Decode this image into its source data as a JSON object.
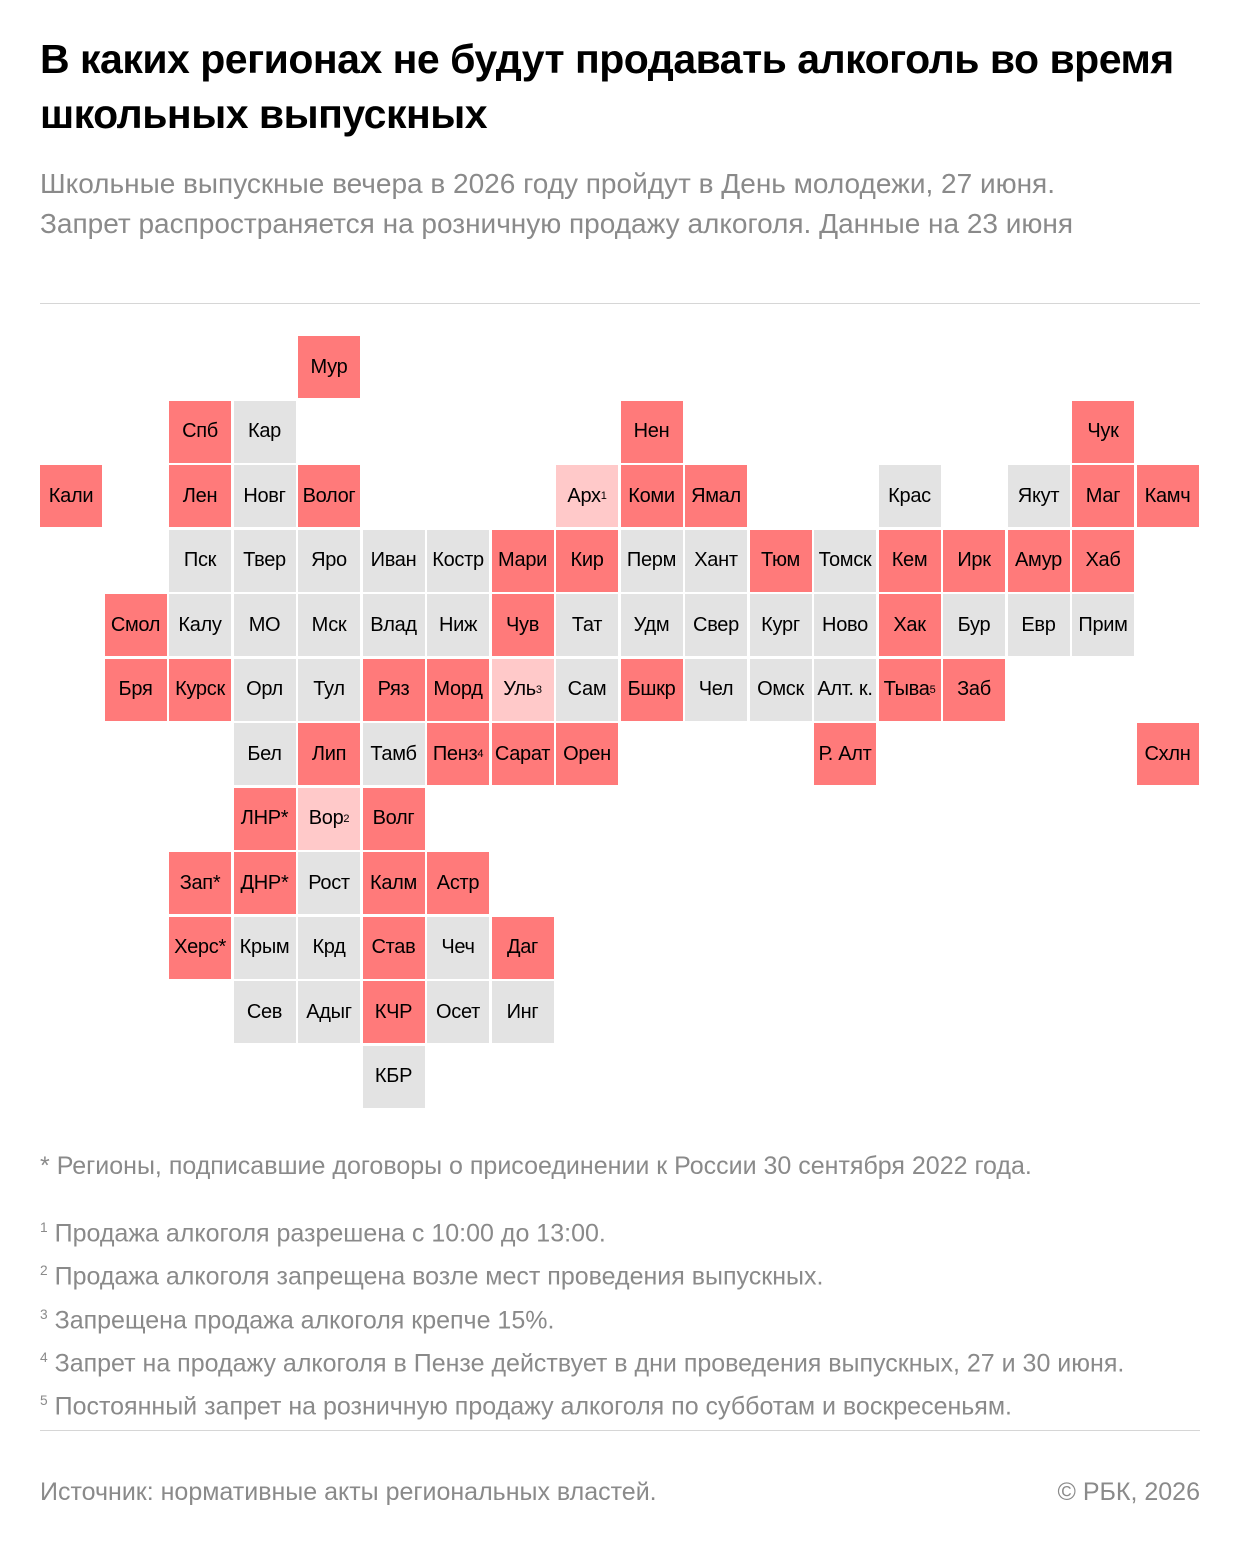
{
  "header": {
    "title": "В каких регионах не будут продавать алкоголь во время школьных выпускных",
    "subtitle": "Школьные выпускные вечера в 2026 году пройдут в День молодежи, 27 июня. Запрет распространяется на розничную продажу алкоголя. Данные на 23 июня"
  },
  "map": {
    "colors": {
      "ban": "#ff7a7a",
      "partial": "#ffc9c9",
      "none": "#e3e3e3"
    },
    "rows": [
      [
        null,
        null,
        null,
        null,
        {
          "label": "Мур",
          "ban": true
        },
        null,
        null,
        null,
        null,
        null,
        null,
        null,
        null,
        null,
        null,
        null,
        null,
        null
      ],
      [
        null,
        null,
        {
          "label": "Спб",
          "ban": true
        },
        {
          "label": "Кар"
        },
        null,
        null,
        null,
        null,
        null,
        {
          "label": "Нен",
          "ban": true
        },
        null,
        null,
        null,
        null,
        null,
        null,
        {
          "label": "Чук",
          "ban": true
        },
        null
      ],
      [
        {
          "label": "Кали",
          "ban": true
        },
        null,
        {
          "label": "Лен",
          "ban": true
        },
        {
          "label": "Новг"
        },
        {
          "label": "Волог",
          "ban": true
        },
        null,
        null,
        null,
        {
          "label": "Арх",
          "note": "1",
          "partial": true
        },
        {
          "label": "Коми",
          "ban": true
        },
        {
          "label": "Ямал",
          "ban": true
        },
        null,
        null,
        {
          "label": "Крас"
        },
        null,
        {
          "label": "Якут"
        },
        {
          "label": "Маг",
          "ban": true
        },
        {
          "label": "Камч",
          "ban": true
        }
      ],
      [
        null,
        null,
        {
          "label": "Пск"
        },
        {
          "label": "Твер"
        },
        {
          "label": "Яро"
        },
        {
          "label": "Иван"
        },
        {
          "label": "Костр"
        },
        {
          "label": "Мари",
          "ban": true
        },
        {
          "label": "Кир",
          "ban": true
        },
        {
          "label": "Перм"
        },
        {
          "label": "Хант"
        },
        {
          "label": "Тюм",
          "ban": true
        },
        {
          "label": "Томск"
        },
        {
          "label": "Кем",
          "ban": true
        },
        {
          "label": "Ирк",
          "ban": true
        },
        {
          "label": "Амур",
          "ban": true
        },
        {
          "label": "Хаб",
          "ban": true
        },
        null
      ],
      [
        null,
        {
          "label": "Смол",
          "ban": true
        },
        {
          "label": "Калу"
        },
        {
          "label": "МО"
        },
        {
          "label": "Мск"
        },
        {
          "label": "Влад"
        },
        {
          "label": "Ниж"
        },
        {
          "label": "Чув",
          "ban": true
        },
        {
          "label": "Тат"
        },
        {
          "label": "Удм"
        },
        {
          "label": "Свер"
        },
        {
          "label": "Кург"
        },
        {
          "label": "Ново"
        },
        {
          "label": "Хак",
          "ban": true
        },
        {
          "label": "Бур"
        },
        {
          "label": "Евр"
        },
        {
          "label": "Прим"
        },
        null
      ],
      [
        null,
        {
          "label": "Бря",
          "ban": true
        },
        {
          "label": "Курск",
          "ban": true
        },
        {
          "label": "Орл"
        },
        {
          "label": "Тул"
        },
        {
          "label": "Ряз",
          "ban": true
        },
        {
          "label": "Морд",
          "ban": true
        },
        {
          "label": "Уль",
          "note": "3",
          "partial": true
        },
        {
          "label": "Сам"
        },
        {
          "label": "Бшкр",
          "ban": true
        },
        {
          "label": "Чел"
        },
        {
          "label": "Омск"
        },
        {
          "label": "Алт. к."
        },
        {
          "label": "Тыва",
          "note": "5",
          "ban": true
        },
        {
          "label": "Заб",
          "ban": true
        },
        null,
        null,
        null
      ],
      [
        null,
        null,
        null,
        {
          "label": "Бел"
        },
        {
          "label": "Лип",
          "ban": true
        },
        {
          "label": "Тамб"
        },
        {
          "label": "Пенз",
          "note": "4",
          "ban": true
        },
        {
          "label": "Сарат",
          "ban": true
        },
        {
          "label": "Орен",
          "ban": true
        },
        null,
        null,
        null,
        {
          "label": "Р. Алт",
          "ban": true
        },
        null,
        null,
        null,
        null,
        {
          "label": "Схлн",
          "ban": true
        }
      ],
      [
        null,
        null,
        null,
        {
          "label": "ЛНР*",
          "ban": true
        },
        {
          "label": "Вор",
          "note": "2",
          "partial": true
        },
        {
          "label": "Волг",
          "ban": true
        },
        null,
        null,
        null,
        null,
        null,
        null,
        null,
        null,
        null,
        null,
        null,
        null
      ],
      [
        null,
        null,
        {
          "label": "Зап*",
          "ban": true
        },
        {
          "label": "ДНР*",
          "ban": true
        },
        {
          "label": "Рост"
        },
        {
          "label": "Калм",
          "ban": true
        },
        {
          "label": "Астр",
          "ban": true
        },
        null,
        null,
        null,
        null,
        null,
        null,
        null,
        null,
        null,
        null,
        null
      ],
      [
        null,
        null,
        {
          "label": "Херс*",
          "ban": true
        },
        {
          "label": "Крым"
        },
        {
          "label": "Крд"
        },
        {
          "label": "Став",
          "ban": true
        },
        {
          "label": "Чеч"
        },
        {
          "label": "Даг",
          "ban": true
        },
        null,
        null,
        null,
        null,
        null,
        null,
        null,
        null,
        null,
        null
      ],
      [
        null,
        null,
        null,
        {
          "label": "Сев"
        },
        {
          "label": "Адыг"
        },
        {
          "label": "КЧР",
          "ban": true
        },
        {
          "label": "Осет"
        },
        {
          "label": "Инг"
        },
        null,
        null,
        null,
        null,
        null,
        null,
        null,
        null,
        null,
        null
      ],
      [
        null,
        null,
        null,
        null,
        null,
        {
          "label": "КБР"
        },
        null,
        null,
        null,
        null,
        null,
        null,
        null,
        null,
        null,
        null,
        null,
        null
      ]
    ]
  },
  "notes": [
    {
      "mark": "*",
      "text": "Регионы, подписавшие договоры о присоединении к России 30 сентября 2022 года."
    },
    {
      "mark": "1",
      "text": "Продажа алкоголя разрешена с 10:00 до 13:00."
    },
    {
      "mark": "2",
      "text": "Продажа алкоголя запрещена возле мест проведения выпускных."
    },
    {
      "mark": "3",
      "text": "Запрещена продажа алкоголя крепче 15%."
    },
    {
      "mark": "4",
      "text": "Запрет на продажу алкоголя в Пензе действует в дни проведения выпускных, 27 и 30 июня."
    },
    {
      "mark": "5",
      "text": "Постоянный запрет на розничную продажу алкоголя по субботам и воскресеньям."
    }
  ],
  "footer": {
    "source": "Источник: нормативные акты региональных властей.",
    "copyright": "© РБК, 2026"
  }
}
